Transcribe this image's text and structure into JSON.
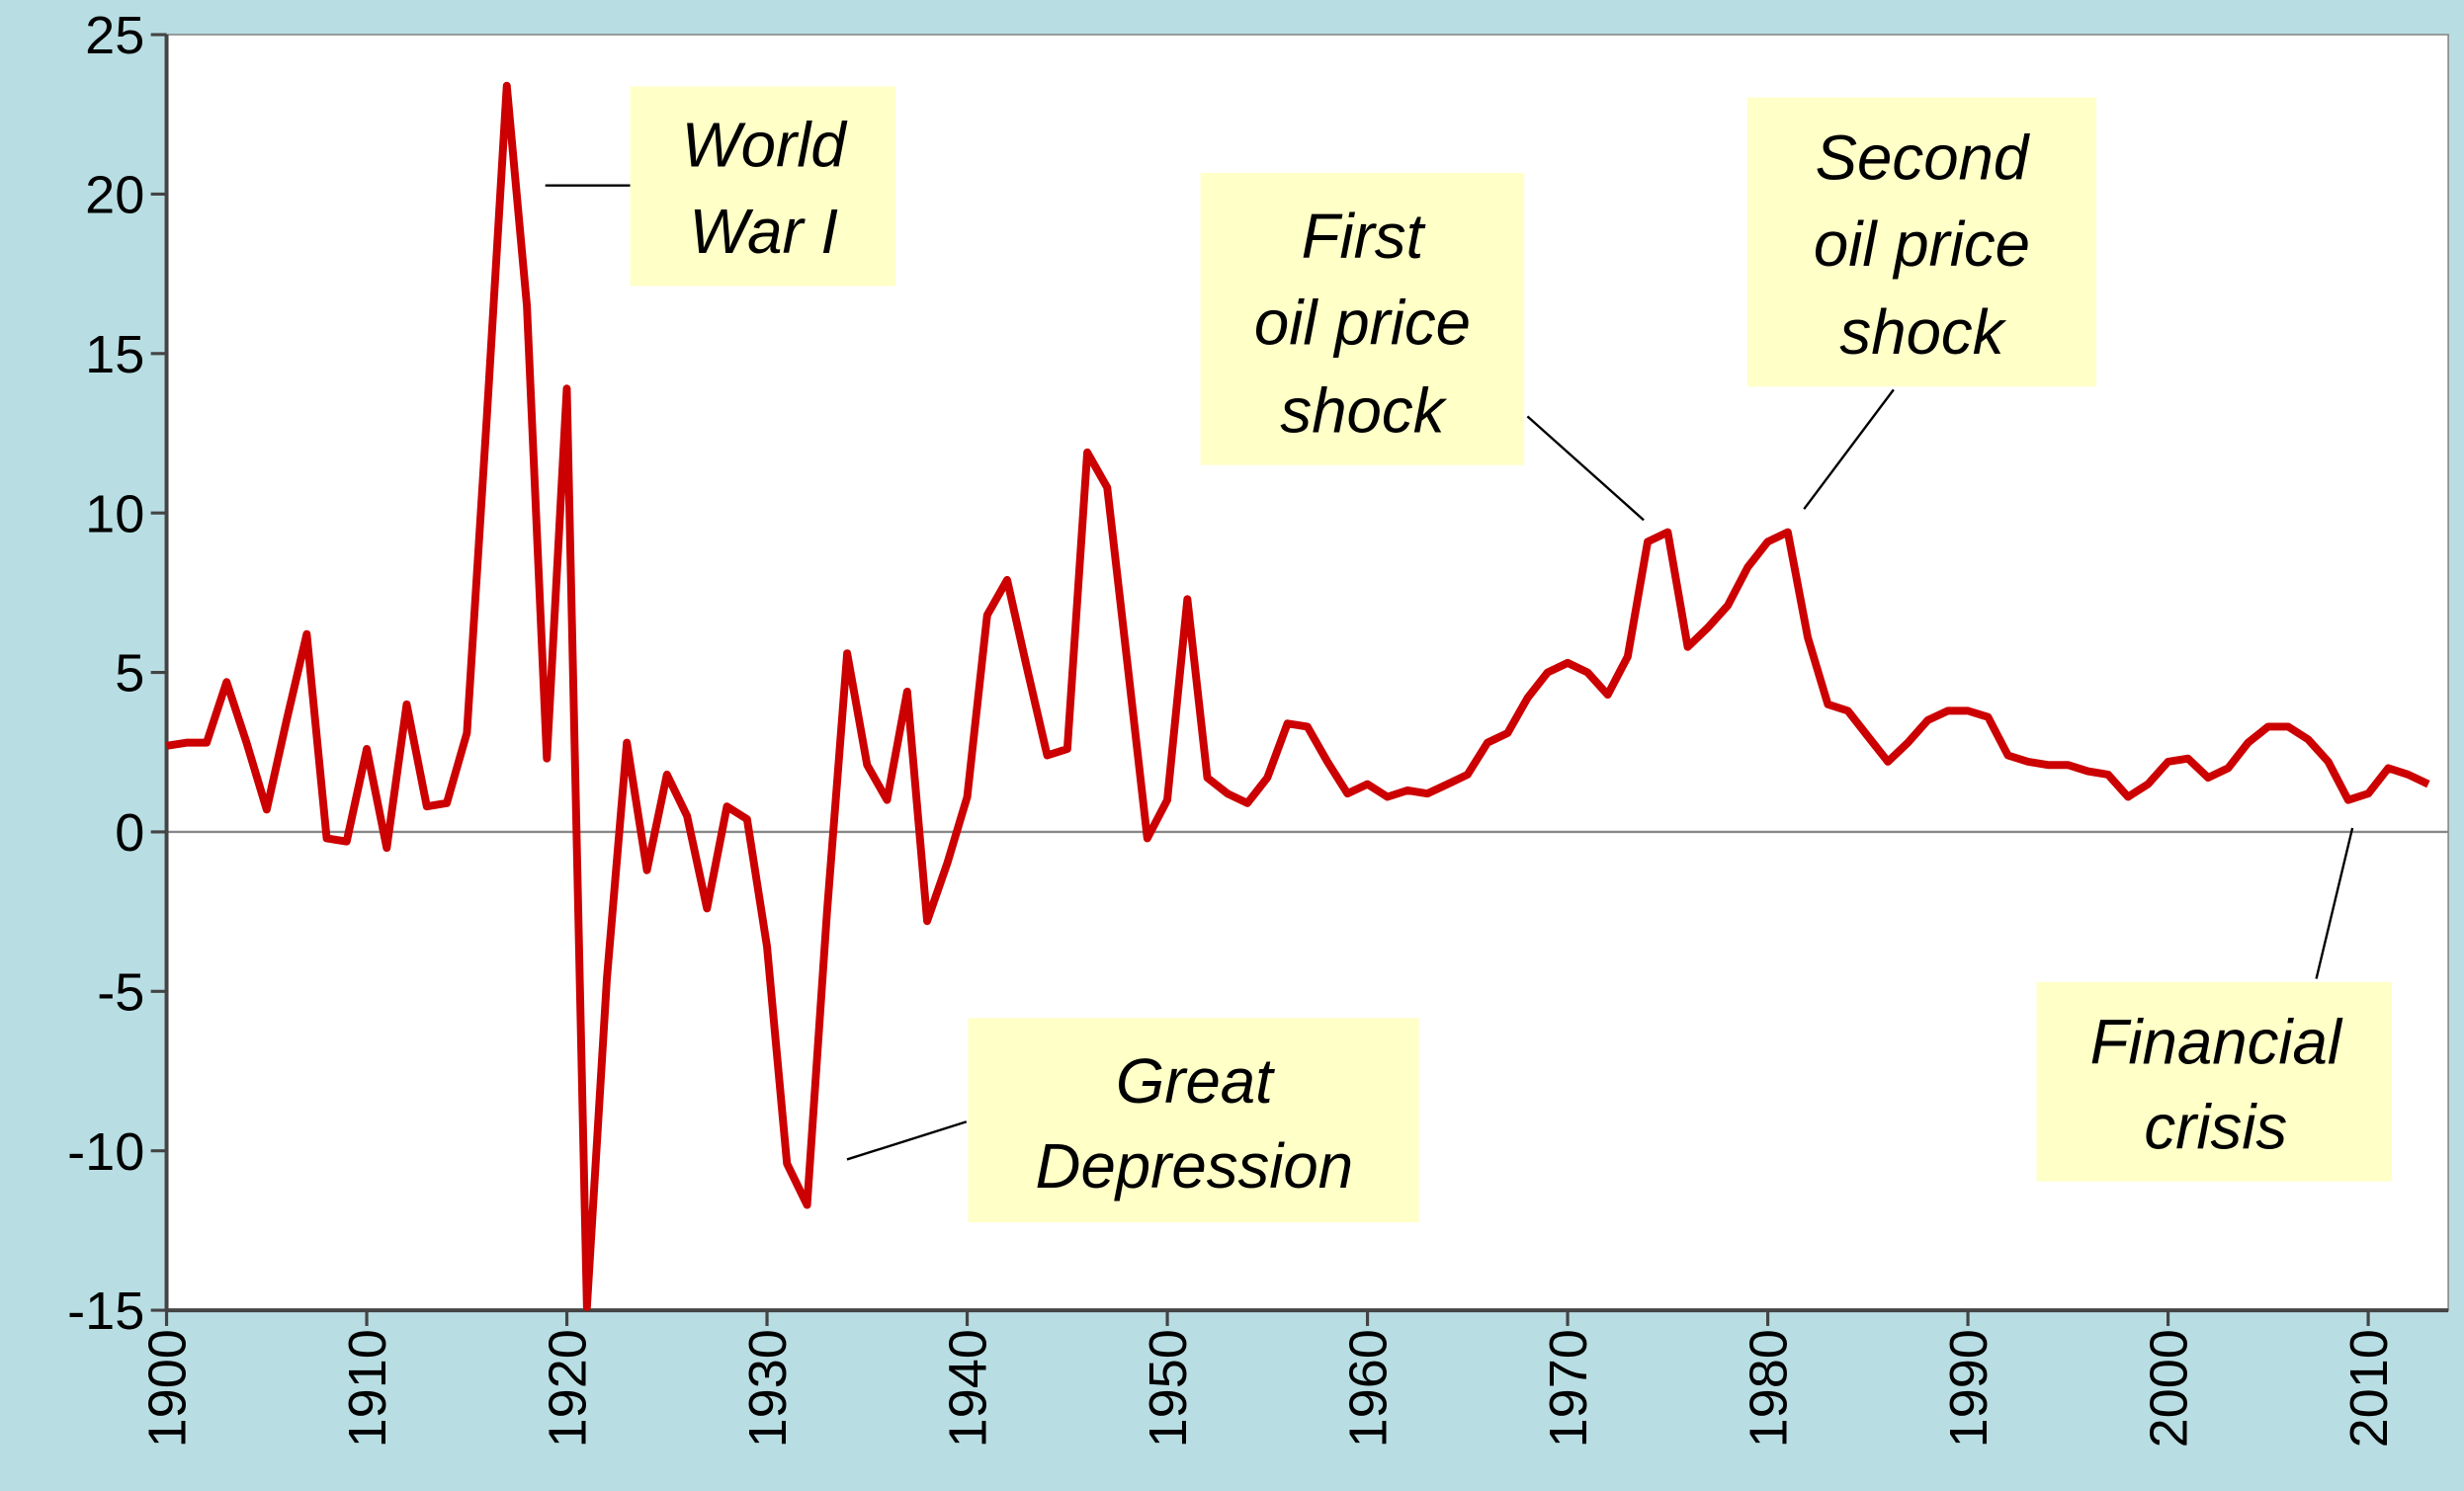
{
  "chart_data": {
    "type": "line",
    "x": [
      1900,
      1901,
      1902,
      1903,
      1904,
      1905,
      1906,
      1907,
      1908,
      1909,
      1910,
      1911,
      1912,
      1913,
      1914,
      1915,
      1916,
      1917,
      1918,
      1919,
      1920,
      1921,
      1922,
      1923,
      1924,
      1925,
      1926,
      1927,
      1928,
      1929,
      1930,
      1931,
      1932,
      1933,
      1934,
      1935,
      1936,
      1937,
      1938,
      1939,
      1940,
      1941,
      1942,
      1943,
      1944,
      1945,
      1946,
      1947,
      1948,
      1949,
      1950,
      1951,
      1952,
      1953,
      1954,
      1955,
      1956,
      1957,
      1958,
      1959,
      1960,
      1961,
      1962,
      1963,
      1964,
      1965,
      1966,
      1967,
      1968,
      1969,
      1970,
      1971,
      1972,
      1973,
      1974,
      1975,
      1976,
      1977,
      1978,
      1979,
      1980,
      1981,
      1982,
      1983,
      1984,
      1985,
      1986,
      1987,
      1988,
      1989,
      1990,
      1991,
      1992,
      1993,
      1994,
      1995,
      1996,
      1997,
      1998,
      1999,
      2000,
      2001,
      2002,
      2003,
      2004,
      2005,
      2006,
      2007,
      2008,
      2009,
      2010,
      2011,
      2012,
      2013
    ],
    "values": [
      2.7,
      2.8,
      2.8,
      4.7,
      2.8,
      0.7,
      3.5,
      6.2,
      -0.2,
      -0.3,
      2.6,
      -0.5,
      4.0,
      0.8,
      0.9,
      3.1,
      13,
      23.4,
      16.5,
      2.3,
      13.9,
      -14.9,
      -4.6,
      2.8,
      -1.2,
      1.8,
      0.5,
      -2.4,
      0.8,
      0.4,
      -3.6,
      -10.4,
      -11.7,
      -2.5,
      5.6,
      2.1,
      1.0,
      4.4,
      -2.8,
      -1.0,
      1.1,
      6.8,
      7.9,
      5.1,
      2.4,
      2.6,
      11.9,
      10.8,
      5.3,
      -0.2,
      1.0,
      7.3,
      1.7,
      1.2,
      0.9,
      1.7,
      3.4,
      3.3,
      2.2,
      1.2,
      1.5,
      1.1,
      1.3,
      1.2,
      1.5,
      1.8,
      2.8,
      3.1,
      4.2,
      5.0,
      5.3,
      5.0,
      4.3,
      5.5,
      9.1,
      9.4,
      5.8,
      6.4,
      7.1,
      8.3,
      9.1,
      9.4,
      6.1,
      4.0,
      3.8,
      3.0,
      2.2,
      2.8,
      3.5,
      3.8,
      3.8,
      3.6,
      2.4,
      2.2,
      2.1,
      2.1,
      1.9,
      1.8,
      1.1,
      1.5,
      2.2,
      2.3,
      1.7,
      2.0,
      2.8,
      3.3,
      3.3,
      2.9,
      2.2,
      1.0,
      1.2,
      2.0,
      1.8,
      1.5
    ],
    "color": "#cc0000",
    "xlim": [
      1900,
      2014
    ],
    "xticks": [
      1900,
      1910,
      1920,
      1930,
      1940,
      1950,
      1960,
      1970,
      1980,
      1990,
      2000,
      2010
    ],
    "ylim": [
      -15,
      25
    ],
    "yticks": [
      -15,
      -10,
      -5,
      0,
      5,
      10,
      15,
      20,
      25
    ],
    "annotations": [
      {
        "lines": [
          "World",
          "War I"
        ]
      },
      {
        "lines": [
          "First",
          "oil price",
          "shock"
        ]
      },
      {
        "lines": [
          "Second",
          "oil price",
          "shock"
        ]
      },
      {
        "lines": [
          "Great",
          "Depression"
        ]
      },
      {
        "lines": [
          "Financial",
          "crisis"
        ]
      }
    ]
  }
}
